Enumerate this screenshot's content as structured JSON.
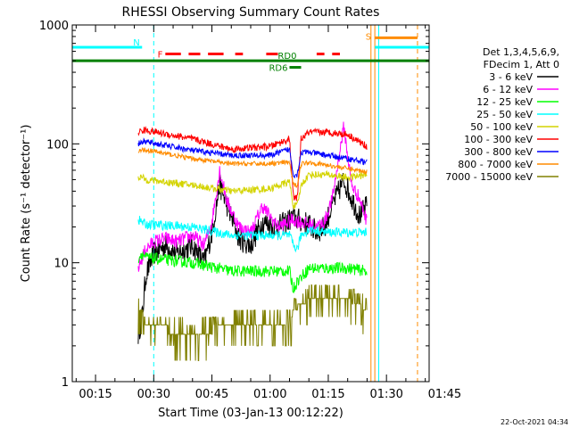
{
  "chart_data": {
    "type": "line",
    "title": "RHESSI Observing Summary Count Rates",
    "xlabel": "Start Time (03-Jan-13 00:12:22)",
    "ylabel": "Count Rate (s⁻¹ detector⁻¹)",
    "y_scale": "log",
    "ylim": [
      1,
      1000
    ],
    "xlim_minutes": [
      9,
      101
    ],
    "x_ticks": [
      {
        "m": 15,
        "label": "00:15"
      },
      {
        "m": 30,
        "label": "00:30"
      },
      {
        "m": 45,
        "label": "00:45"
      },
      {
        "m": 60,
        "label": "01:00"
      },
      {
        "m": 75,
        "label": "01:15"
      },
      {
        "m": 90,
        "label": "01:30"
      },
      {
        "m": 105,
        "label": "01:45"
      }
    ],
    "y_ticks": [
      {
        "v": 1,
        "label": "1"
      },
      {
        "v": 10,
        "label": "10"
      },
      {
        "v": 100,
        "label": "100"
      },
      {
        "v": 1000,
        "label": "1000"
      }
    ],
    "legend": {
      "header": [
        "Det 1,3,4,5,6,9,",
        "FDecim 1, Att 0"
      ],
      "placement": "right"
    },
    "series": [
      {
        "name": "3 - 6 keV",
        "color": "#000000",
        "noise": 0.1,
        "x": [
          26,
          27,
          28,
          30,
          33,
          36,
          40,
          43,
          45,
          47,
          49,
          52,
          55,
          58,
          62,
          66,
          70,
          72,
          74,
          76,
          79,
          81,
          83,
          85
        ],
        "y": [
          2.5,
          3.5,
          8,
          12,
          14,
          12,
          14,
          10,
          18,
          45,
          30,
          16,
          14,
          22,
          20,
          24,
          21,
          18,
          20,
          30,
          50,
          35,
          25,
          30
        ]
      },
      {
        "name": "6 - 12 keV",
        "color": "#ff00ff",
        "noise": 0.06,
        "x": [
          26,
          27,
          28,
          30,
          33,
          36,
          40,
          43,
          45,
          47,
          49,
          52,
          55,
          58,
          62,
          66,
          70,
          72,
          74,
          76,
          79,
          81,
          83,
          85
        ],
        "y": [
          9,
          11,
          13,
          15,
          16,
          15,
          17,
          14,
          22,
          60,
          32,
          20,
          18,
          30,
          20,
          23,
          21,
          20,
          22,
          34,
          140,
          45,
          35,
          22
        ]
      },
      {
        "name": "12 - 25 keV",
        "color": "#00ff00",
        "noise": 0.05,
        "x": [
          26,
          27,
          28,
          40,
          50,
          60,
          65,
          66,
          67,
          70,
          75,
          80,
          85
        ],
        "y": [
          11,
          12,
          11,
          10,
          8.5,
          8.5,
          8.5,
          6,
          7,
          9,
          9,
          9,
          8.5
        ]
      },
      {
        "name": "25 - 50 keV",
        "color": "#00ffff",
        "noise": 0.04,
        "x": [
          26,
          27,
          28,
          40,
          50,
          60,
          65,
          66,
          67,
          68,
          70,
          75,
          80,
          85
        ],
        "y": [
          23,
          22,
          21,
          20,
          17,
          17,
          17,
          14,
          13,
          17,
          19,
          18,
          18,
          18
        ]
      },
      {
        "name": "50 - 100 keV",
        "color": "#d4d400",
        "noise": 0.03,
        "x": [
          26,
          27,
          28,
          40,
          50,
          60,
          65,
          66,
          67,
          68,
          70,
          75,
          80,
          85
        ],
        "y": [
          53,
          52,
          50,
          45,
          40,
          42,
          48,
          30,
          30,
          45,
          55,
          55,
          52,
          55
        ]
      },
      {
        "name": "100 - 300 keV",
        "color": "#ff0000",
        "noise": 0.03,
        "x": [
          26,
          27,
          28,
          40,
          50,
          60,
          65,
          66,
          67,
          68,
          70,
          75,
          80,
          85
        ],
        "y": [
          125,
          130,
          130,
          110,
          90,
          95,
          110,
          35,
          35,
          110,
          125,
          125,
          120,
          95
        ]
      },
      {
        "name": "300 - 800 keV",
        "color": "#0000ff",
        "noise": 0.025,
        "x": [
          26,
          27,
          28,
          40,
          50,
          60,
          65,
          66,
          67,
          68,
          70,
          75,
          80,
          85
        ],
        "y": [
          100,
          104,
          104,
          88,
          80,
          80,
          90,
          55,
          55,
          85,
          85,
          80,
          75,
          70
        ]
      },
      {
        "name": "800 - 7000 keV",
        "color": "#ff8c00",
        "noise": 0.02,
        "x": [
          26,
          27,
          28,
          40,
          50,
          60,
          65,
          66,
          67,
          68,
          70,
          75,
          80,
          85
        ],
        "y": [
          85,
          89,
          89,
          75,
          68,
          68,
          70,
          45,
          45,
          68,
          70,
          66,
          62,
          58
        ]
      },
      {
        "name": "7000 - 15000 keV",
        "color": "#808000",
        "noise": 0,
        "x": [
          26,
          27,
          28,
          40,
          50,
          60,
          65,
          66,
          70,
          75,
          80,
          85
        ],
        "y": [
          4,
          4,
          3,
          2.5,
          3,
          3,
          3,
          4,
          5,
          5,
          5,
          4
        ]
      }
    ],
    "state_bars": [
      {
        "label": "N",
        "color": "#00ffff",
        "v": 650,
        "segments": [
          [
            9,
            27
          ],
          [
            87,
            101
          ]
        ]
      },
      {
        "label": "F",
        "color": "#ff0000",
        "v": 570,
        "segments": [
          [
            33,
            37
          ],
          [
            39,
            42
          ],
          [
            44,
            48
          ],
          [
            51,
            53
          ],
          [
            59,
            62
          ],
          [
            72,
            74
          ],
          [
            76,
            78
          ]
        ]
      },
      {
        "label": "S",
        "color": "#ff8c00",
        "v": 780,
        "segments": [
          [
            87,
            98
          ]
        ]
      },
      {
        "label": "RD0",
        "color": "#008000",
        "v": 500,
        "segments": [
          [
            9,
            101
          ]
        ]
      },
      {
        "label": "RD6",
        "color": "#008000",
        "v": 440,
        "segments": [
          [
            65,
            68
          ]
        ]
      }
    ],
    "vertical_lines": [
      {
        "m": 9,
        "color": "#00ffff",
        "dash": false
      },
      {
        "m": 30,
        "color": "#00ffff",
        "dash": true
      },
      {
        "m": 86,
        "color": "#ff8c00",
        "dash": false
      },
      {
        "m": 87,
        "color": "#ff8c00",
        "dash": false
      },
      {
        "m": 88,
        "color": "#00ffff",
        "dash": false
      },
      {
        "m": 98,
        "color": "#ff8c00",
        "dash": true
      },
      {
        "m": 101,
        "color": "#00ffff",
        "dash": true
      }
    ]
  },
  "footer": {
    "timestamp": "22-Oct-2021 04:34"
  }
}
